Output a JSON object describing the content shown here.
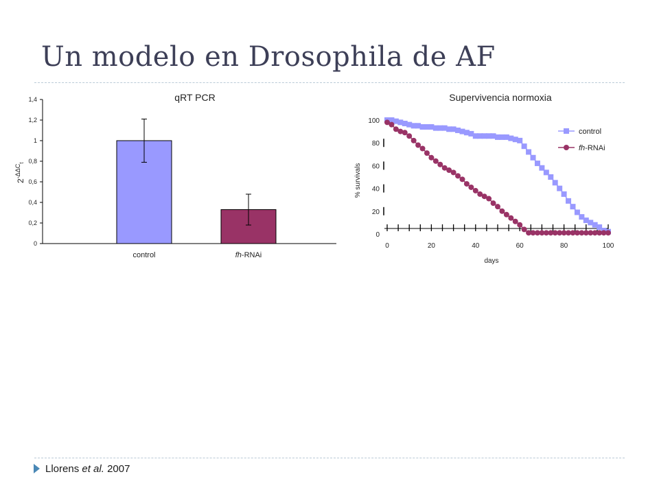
{
  "slide": {
    "title": "Un modelo en Drosophila de AF",
    "citation": {
      "author": "Llorens",
      "etal": "et al.",
      "year": "2007"
    }
  },
  "chart_data": [
    {
      "type": "bar",
      "title": "qRT PCR",
      "ylabel": "2",
      "ylabel_sup": "-ΔΔC",
      "ylabel_sub": "t",
      "categories": [
        "control",
        "fh-RNAi"
      ],
      "category_labels": [
        {
          "prefix": "control",
          "italic": "",
          "suffix": ""
        },
        {
          "prefix": "",
          "italic": "fh",
          "suffix": "-RNAi"
        }
      ],
      "values": [
        1.0,
        0.33
      ],
      "error": [
        0.21,
        0.15
      ],
      "colors": [
        "#9999ff",
        "#993366"
      ],
      "ylim": [
        0,
        1.4
      ],
      "yticks": [
        "0",
        "0,2",
        "0,4",
        "0,6",
        "0,8",
        "1",
        "1,2",
        "1,4"
      ],
      "legend": false,
      "grid": false
    },
    {
      "type": "line",
      "title": "Supervivencia normoxia",
      "xlabel": "days",
      "ylabel": "% survivals",
      "xlim": [
        0,
        100
      ],
      "ylim": [
        0,
        100
      ],
      "xticks": [
        "0",
        "20",
        "40",
        "60",
        "80",
        "100"
      ],
      "yticks": [
        "0",
        "20",
        "40",
        "60",
        "80",
        "100"
      ],
      "legend": "top-right",
      "grid": false,
      "series": [
        {
          "name": "control",
          "legend_italic": "",
          "legend_suffix": "control",
          "marker": "square",
          "color": "#9999ff",
          "x": [
            0,
            2,
            4,
            6,
            8,
            10,
            12,
            14,
            16,
            18,
            20,
            22,
            24,
            26,
            28,
            30,
            32,
            34,
            36,
            38,
            40,
            42,
            44,
            46,
            48,
            50,
            52,
            54,
            56,
            58,
            60,
            62,
            64,
            66,
            68,
            70,
            72,
            74,
            76,
            78,
            80,
            82,
            84,
            86,
            88,
            90,
            92,
            94,
            96,
            98,
            100
          ],
          "y": [
            100,
            100,
            99,
            98,
            97,
            96,
            95,
            95,
            94,
            94,
            94,
            93,
            93,
            93,
            92,
            92,
            91,
            90,
            89,
            88,
            86,
            86,
            86,
            86,
            86,
            85,
            85,
            85,
            84,
            83,
            82,
            77,
            72,
            67,
            62,
            58,
            54,
            50,
            45,
            40,
            35,
            29,
            24,
            19,
            15,
            12,
            10,
            8,
            6,
            3,
            2
          ]
        },
        {
          "name": "fh-RNAi",
          "legend_italic": "fh",
          "legend_suffix": "-RNAi",
          "marker": "circle",
          "color": "#993366",
          "x": [
            0,
            2,
            4,
            6,
            8,
            10,
            12,
            14,
            16,
            18,
            20,
            22,
            24,
            26,
            28,
            30,
            32,
            34,
            36,
            38,
            40,
            42,
            44,
            46,
            48,
            50,
            52,
            54,
            56,
            58,
            60,
            62,
            64,
            66,
            68,
            70,
            72,
            74,
            76,
            78,
            80,
            82,
            84,
            86,
            88,
            90,
            92,
            94,
            96,
            98,
            100
          ],
          "y": [
            98,
            96,
            92,
            90,
            89,
            86,
            82,
            78,
            75,
            71,
            67,
            64,
            61,
            58,
            56,
            54,
            51,
            48,
            44,
            41,
            38,
            35,
            33,
            31,
            27,
            24,
            20,
            17,
            14,
            11,
            8,
            4,
            1,
            1,
            1,
            1,
            1,
            1,
            1,
            1,
            1,
            1,
            1,
            1,
            1,
            1,
            1,
            1,
            1,
            1,
            1
          ]
        }
      ]
    }
  ]
}
